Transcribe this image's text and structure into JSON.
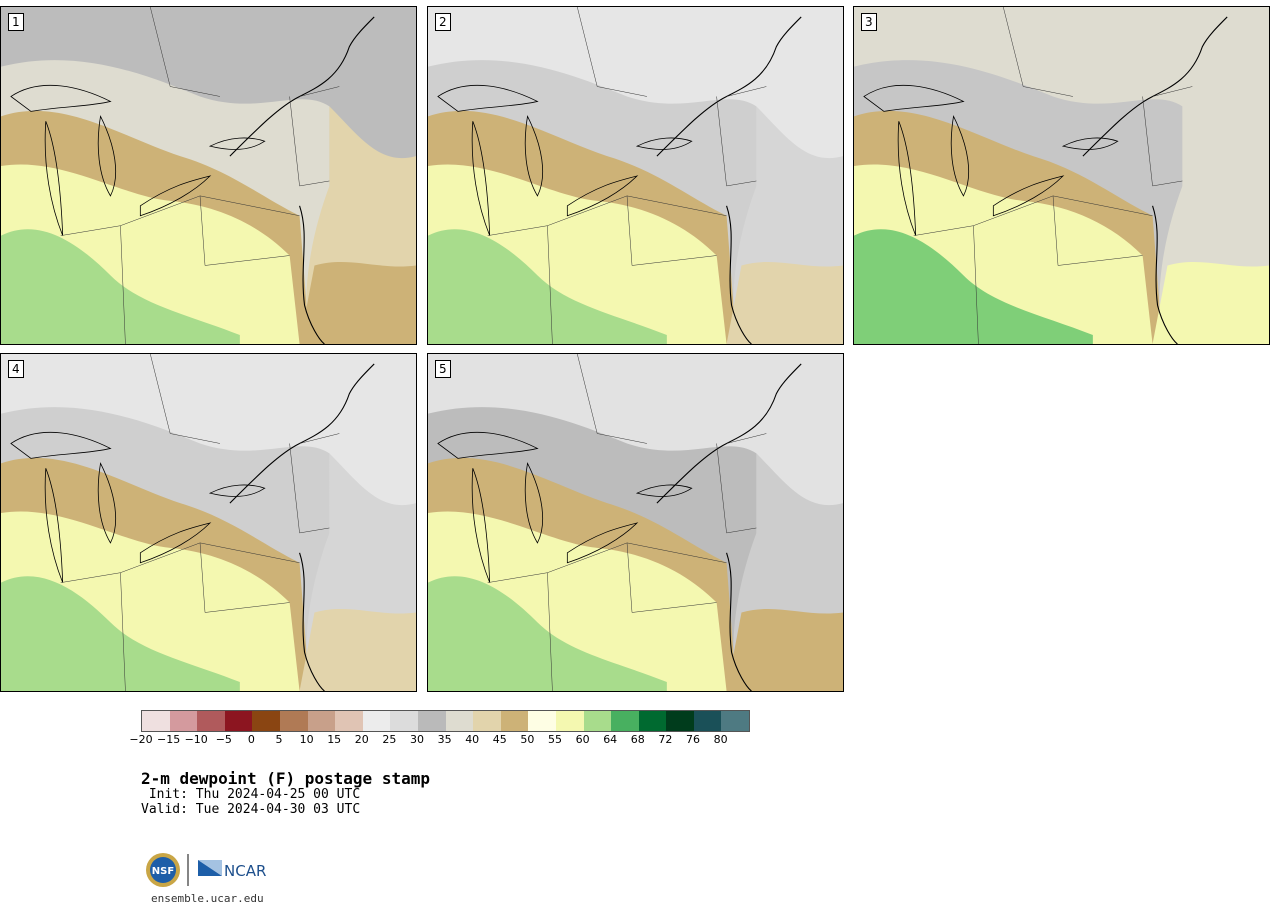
{
  "panels": [
    {
      "label": "1",
      "theme": "warm"
    },
    {
      "label": "2",
      "theme": "cool"
    },
    {
      "label": "3",
      "theme": "mixed"
    },
    {
      "label": "4",
      "theme": "cool"
    },
    {
      "label": "5",
      "theme": "coolwarm"
    }
  ],
  "colorbar": {
    "colors": [
      "#efe0e0",
      "#d49a9e",
      "#b05a5c",
      "#8c1520",
      "#8a4512",
      "#b07a55",
      "#c8a08a",
      "#e0c4b4",
      "#ececec",
      "#dcdcdc",
      "#bababa",
      "#dedcd0",
      "#e2d4ac",
      "#cdb277",
      "#fefee4",
      "#f4f8b0",
      "#a8dc8c",
      "#48b060",
      "#006a30",
      "#003c1c",
      "#1a5058",
      "#4e7a82"
    ],
    "ticks": [
      "-20",
      "-15",
      "-10",
      "-5",
      "0",
      "5",
      "10",
      "15",
      "20",
      "25",
      "30",
      "35",
      "40",
      "45",
      "50",
      "55",
      "60",
      "64",
      "68",
      "72",
      "76",
      "80"
    ]
  },
  "title": "2-m dewpoint (F) postage stamp",
  "init": " Init: Thu 2024-04-25 00 UTC",
  "valid": "Valid: Tue 2024-04-30 03 UTC",
  "footer": "ensemble.ucar.edu",
  "logos": {
    "nsf": "NSF",
    "ncar": "NCAR"
  }
}
